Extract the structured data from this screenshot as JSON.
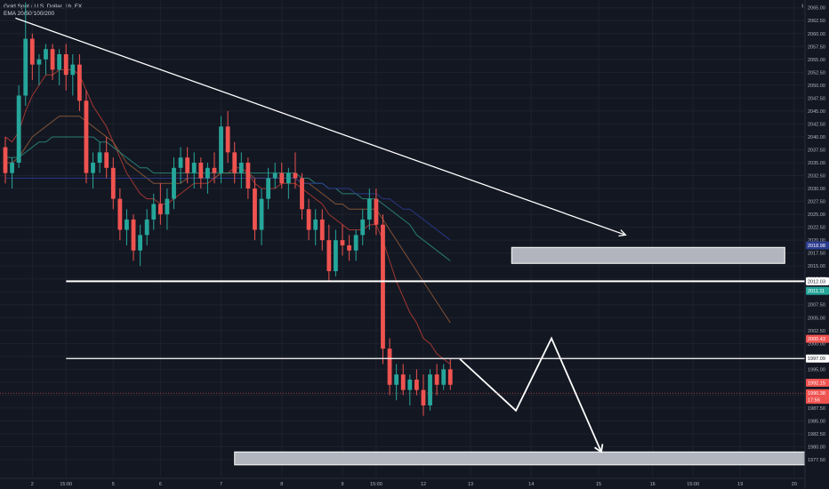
{
  "header": {
    "symbol": "Gold Spot / U.S. Dollar, 1h, FX",
    "indicator": "EMA 20/50/100/200"
  },
  "currency_label": "USD",
  "colors": {
    "background": "#131722",
    "up": "#26a69a",
    "down": "#ef5350",
    "ema20": "#b23a32",
    "ema50": "#8f5a38",
    "ema100": "#2a8a7c",
    "ema200": "#2b3c8f",
    "drawing": "#ffffff",
    "zone_fill": "#b2b5be"
  },
  "chart_data": {
    "type": "candlestick",
    "title": "Gold Spot / U.S. Dollar, 1h, FX",
    "ylim": [
      1976,
      2066
    ],
    "y_ticks": [
      1977.5,
      1980,
      1982.5,
      1985,
      1987.5,
      1990,
      1992.5,
      1995,
      1997.5,
      2000,
      2002.5,
      2005,
      2007.5,
      2010,
      2012.5,
      2015,
      2017.5,
      2020,
      2022.5,
      2025,
      2027.5,
      2030,
      2032.5,
      2035,
      2037.5,
      2040,
      2042.5,
      2045,
      2047.5,
      2050,
      2052.5,
      2055,
      2057.5,
      2060,
      2062.5,
      2065
    ],
    "x_tick_labels": [
      {
        "label": "2",
        "bar": 4
      },
      {
        "label": "15:00",
        "bar": 9
      },
      {
        "label": "5",
        "bar": 16
      },
      {
        "label": "6",
        "bar": 23
      },
      {
        "label": "7",
        "bar": 32
      },
      {
        "label": "8",
        "bar": 41
      },
      {
        "label": "9",
        "bar": 50
      },
      {
        "label": "15:00",
        "bar": 55
      },
      {
        "label": "12",
        "bar": 62
      },
      {
        "label": "13",
        "bar": 69
      },
      {
        "label": "14",
        "bar": 78
      },
      {
        "label": "15",
        "bar": 88
      },
      {
        "label": "16",
        "bar": 96
      },
      {
        "label": "15:00",
        "bar": 102
      },
      {
        "label": "19",
        "bar": 109
      },
      {
        "label": "20",
        "bar": 117
      },
      {
        "label": "21",
        "bar": 126
      }
    ],
    "candles": [
      [
        2038,
        2040,
        2031,
        2033
      ],
      [
        2033,
        2036,
        2030,
        2035
      ],
      [
        2035,
        2050,
        2034,
        2048
      ],
      [
        2048,
        2066,
        2046,
        2059
      ],
      [
        2059,
        2060,
        2051,
        2054
      ],
      [
        2054,
        2056,
        2050,
        2055
      ],
      [
        2055,
        2058,
        2052,
        2057
      ],
      [
        2057,
        2058,
        2051,
        2053
      ],
      [
        2053,
        2057,
        2050,
        2056
      ],
      [
        2056,
        2058,
        2049,
        2052
      ],
      [
        2052,
        2056,
        2048,
        2054
      ],
      [
        2054,
        2056,
        2045,
        2047
      ],
      [
        2047,
        2049,
        2031,
        2033
      ],
      [
        2033,
        2037,
        2030,
        2035
      ],
      [
        2035,
        2039,
        2033,
        2037
      ],
      [
        2037,
        2040,
        2032,
        2034
      ],
      [
        2034,
        2036,
        2026,
        2028
      ],
      [
        2028,
        2030,
        2020,
        2022
      ],
      [
        2022,
        2026,
        2019,
        2024
      ],
      [
        2024,
        2025,
        2016,
        2018
      ],
      [
        2018,
        2023,
        2015,
        2021
      ],
      [
        2021,
        2026,
        2019,
        2024
      ],
      [
        2024,
        2029,
        2022,
        2027
      ],
      [
        2027,
        2031,
        2023,
        2025
      ],
      [
        2025,
        2030,
        2022,
        2028
      ],
      [
        2028,
        2036,
        2026,
        2034
      ],
      [
        2034,
        2038,
        2031,
        2036
      ],
      [
        2036,
        2038,
        2031,
        2033
      ],
      [
        2033,
        2037,
        2030,
        2035
      ],
      [
        2035,
        2036,
        2030,
        2032
      ],
      [
        2032,
        2035,
        2029,
        2034
      ],
      [
        2034,
        2037,
        2031,
        2033
      ],
      [
        2033,
        2044,
        2031,
        2042
      ],
      [
        2042,
        2045,
        2035,
        2037
      ],
      [
        2037,
        2039,
        2031,
        2033
      ],
      [
        2033,
        2037,
        2030,
        2035
      ],
      [
        2035,
        2036,
        2028,
        2030
      ],
      [
        2030,
        2032,
        2020,
        2022
      ],
      [
        2022,
        2030,
        2019,
        2028
      ],
      [
        2028,
        2034,
        2026,
        2032
      ],
      [
        2032,
        2035,
        2030,
        2033
      ],
      [
        2033,
        2035,
        2030,
        2031
      ],
      [
        2031,
        2034,
        2028,
        2033
      ],
      [
        2033,
        2037,
        2030,
        2032
      ],
      [
        2032,
        2033,
        2024,
        2026
      ],
      [
        2026,
        2028,
        2020,
        2022
      ],
      [
        2022,
        2026,
        2019,
        2024
      ],
      [
        2024,
        2026,
        2018,
        2020
      ],
      [
        2020,
        2023,
        2012,
        2014
      ],
      [
        2014,
        2022,
        2013,
        2020
      ],
      [
        2020,
        2023,
        2017,
        2019
      ],
      [
        2019,
        2021,
        2016,
        2018
      ],
      [
        2018,
        2022,
        2016,
        2021
      ],
      [
        2021,
        2026,
        2019,
        2024
      ],
      [
        2024,
        2030,
        2022,
        2028
      ],
      [
        2028,
        2030,
        2021,
        2023
      ],
      [
        2023,
        2025,
        1996,
        1999
      ],
      [
        1999,
        2001,
        1990,
        1992
      ],
      [
        1992,
        1996,
        1989,
        1994
      ],
      [
        1994,
        1996,
        1990,
        1991
      ],
      [
        1991,
        1994,
        1988,
        1993
      ],
      [
        1993,
        1995,
        1990,
        1991
      ],
      [
        1991,
        1994,
        1986,
        1988
      ],
      [
        1988,
        1995,
        1987,
        1994
      ],
      [
        1994,
        1996,
        1990,
        1992
      ],
      [
        1992,
        1996,
        1991,
        1995
      ],
      [
        1995,
        1997,
        1991,
        1992
      ]
    ],
    "ema_series": [
      {
        "name": "EMA 20",
        "values": [
          2040,
          2039,
          2041,
          2045,
          2048,
          2050,
          2052,
          2052,
          2053,
          2053,
          2053,
          2052,
          2049,
          2046,
          2044,
          2042,
          2039,
          2036,
          2033,
          2031,
          2029,
          2028,
          2028,
          2027,
          2027,
          2028,
          2029,
          2030,
          2031,
          2031,
          2031,
          2032,
          2033,
          2033,
          2034,
          2034,
          2033,
          2031,
          2030,
          2030,
          2030,
          2031,
          2031,
          2031,
          2030,
          2029,
          2028,
          2027,
          2025,
          2024,
          2023,
          2022,
          2022,
          2022,
          2023,
          2023,
          2020,
          2016,
          2012,
          2009,
          2006,
          2004,
          2001,
          2000,
          1998,
          1997,
          1996
        ]
      },
      {
        "name": "EMA 50",
        "values": [
          2035,
          2035,
          2036,
          2038,
          2040,
          2041,
          2042,
          2043,
          2044,
          2044,
          2044,
          2044,
          2043,
          2042,
          2041,
          2040,
          2039,
          2037,
          2035,
          2034,
          2033,
          2032,
          2031,
          2031,
          2031,
          2031,
          2031,
          2032,
          2032,
          2032,
          2032,
          2032,
          2033,
          2033,
          2033,
          2033,
          2033,
          2032,
          2032,
          2032,
          2032,
          2032,
          2032,
          2032,
          2031,
          2031,
          2030,
          2029,
          2028,
          2027,
          2027,
          2026,
          2026,
          2026,
          2026,
          2026,
          2024,
          2022,
          2020,
          2018,
          2016,
          2014,
          2012,
          2010,
          2008,
          2006,
          2004
        ]
      },
      {
        "name": "EMA 100",
        "values": [
          2036,
          2036,
          2036,
          2037,
          2038,
          2039,
          2039,
          2040,
          2040,
          2040,
          2040,
          2040,
          2040,
          2040,
          2039,
          2039,
          2038,
          2037,
          2036,
          2035,
          2034,
          2034,
          2033,
          2033,
          2033,
          2033,
          2033,
          2033,
          2033,
          2033,
          2033,
          2033,
          2033,
          2033,
          2033,
          2033,
          2033,
          2033,
          2033,
          2033,
          2033,
          2033,
          2033,
          2033,
          2032,
          2032,
          2031,
          2031,
          2030,
          2030,
          2029,
          2029,
          2029,
          2028,
          2028,
          2028,
          2027,
          2026,
          2025,
          2024,
          2023,
          2021,
          2020,
          2019,
          2018,
          2017,
          2016
        ]
      },
      {
        "name": "EMA 200",
        "values": [
          2032,
          2032,
          2032,
          2032,
          2032,
          2032,
          2032,
          2032,
          2032,
          2032,
          2032,
          2032,
          2032,
          2032,
          2032,
          2032,
          2032,
          2032,
          2032,
          2032,
          2032,
          2032,
          2032,
          2032,
          2032,
          2032,
          2032,
          2032,
          2032,
          2032,
          2032,
          2032,
          2032,
          2032,
          2032,
          2032,
          2032,
          2032,
          2032,
          2032,
          2032,
          2032,
          2032,
          2032,
          2031,
          2031,
          2031,
          2031,
          2030,
          2030,
          2030,
          2030,
          2029,
          2029,
          2029,
          2029,
          2028,
          2028,
          2027,
          2026,
          2026,
          2025,
          2024,
          2023,
          2022,
          2021,
          2020
        ]
      }
    ],
    "price_badges": [
      {
        "text": "2018.98",
        "price": 2018.98,
        "color": "#2b3c8f"
      },
      {
        "text": "2012.03",
        "price": 2012.03,
        "color": "#ffffff",
        "text_color": "#131722"
      },
      {
        "text": "2011.11",
        "price": 2010.2,
        "color": "#26a69a"
      },
      {
        "text": "2000.43",
        "price": 2000.9,
        "color": "#ef5350"
      },
      {
        "text": "1997.09",
        "price": 1997.09,
        "color": "#ffffff",
        "text_color": "#131722"
      },
      {
        "text": "1992.15",
        "price": 1992.4,
        "color": "#ef5350"
      },
      {
        "text": "1990.38",
        "price": 1990.38,
        "color": "#ef5350"
      },
      {
        "text": "17:56",
        "price": 1989.1,
        "color": "#ef5350"
      }
    ],
    "drawings": {
      "trendline": {
        "from": {
          "bar": 1.5,
          "price": 2063
        },
        "to": {
          "bar": 92,
          "price": 2021
        }
      },
      "hlines": [
        {
          "price": 2012.03,
          "from_bar": 4
        },
        {
          "price": 1997.09,
          "from_bar": 4
        }
      ],
      "zones": [
        {
          "from_bar": 78,
          "to_bar": 104,
          "p_high": 2018.6,
          "p_low": 2015.5
        },
        {
          "from_bar": 34,
          "to_bar": 106,
          "p_high": 1979.0,
          "p_low": 1976.5
        }
      ],
      "projection": [
        {
          "bar": 56,
          "price": 1997
        },
        {
          "bar": 62,
          "price": 1987
        },
        {
          "bar": 66,
          "price": 2001
        },
        {
          "bar": 72,
          "price": 1979
        }
      ]
    }
  }
}
